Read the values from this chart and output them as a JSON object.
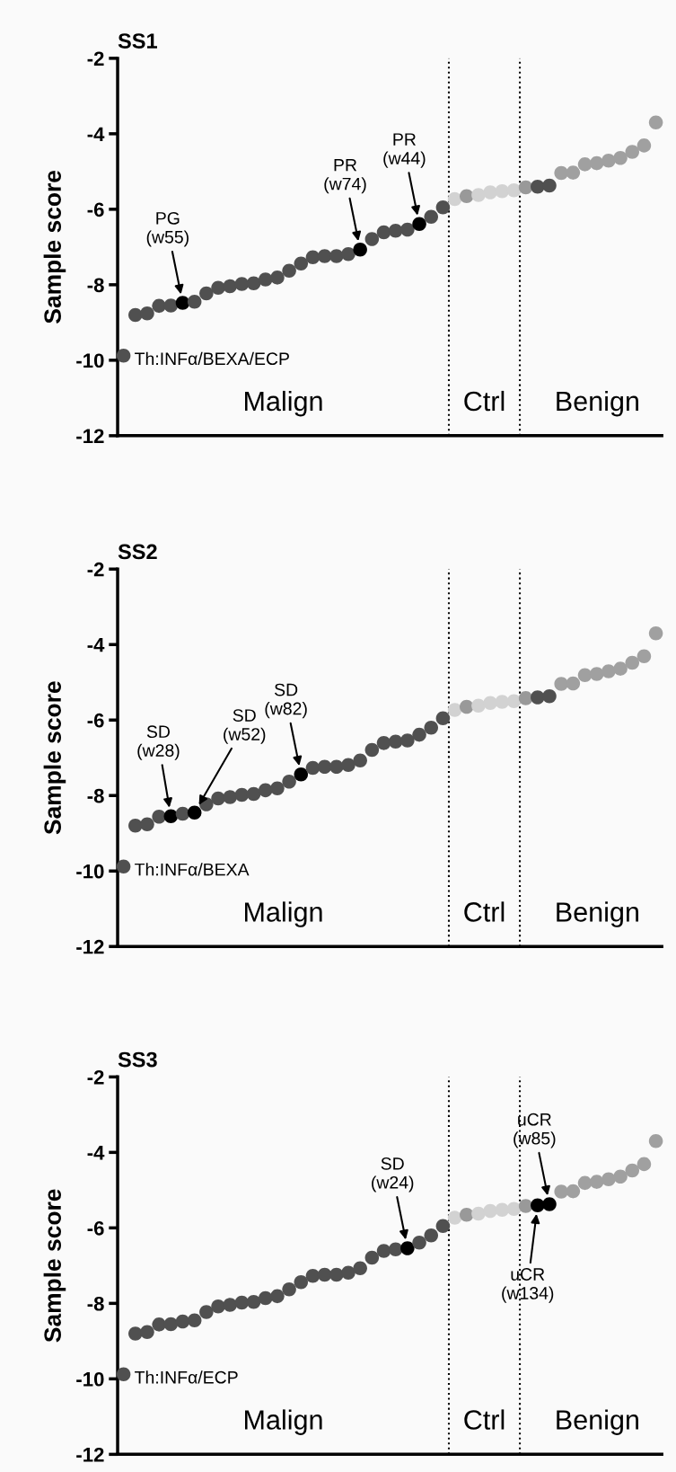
{
  "chart_data": [
    {
      "type": "scatter",
      "title": "SS1",
      "ylabel": "Sample score",
      "categories": [
        null,
        null,
        null,
        null,
        null,
        null,
        null,
        null,
        null,
        null,
        null,
        null,
        null,
        null,
        null,
        null,
        null,
        null,
        null,
        null,
        null,
        null,
        null,
        null,
        null,
        null,
        null,
        null,
        null,
        null,
        null,
        null,
        null,
        null,
        null,
        null,
        null,
        null,
        null,
        null,
        null,
        null,
        null,
        null,
        null,
        null
      ],
      "ylim": [
        -12,
        -2
      ],
      "yticks": [
        -2,
        -4,
        -6,
        -8,
        -10,
        -12
      ],
      "tick_labels": "y",
      "marker": "circle",
      "grid": false,
      "series": [
        {
          "values": [
            -9.88,
            -8.8,
            -8.76,
            -8.56,
            -8.55,
            -8.48,
            -8.45,
            -8.23,
            -8.08,
            -8.04,
            -7.98,
            -7.96,
            -7.86,
            -7.81,
            -7.63,
            -7.44,
            -7.27,
            -7.24,
            -7.24,
            -7.19,
            -7.07,
            -6.79,
            -6.61,
            -6.57,
            -6.54,
            -6.39,
            -6.2,
            -5.95,
            -5.73,
            -5.65,
            -5.62,
            -5.55,
            -5.52,
            -5.5,
            -5.42,
            -5.4,
            -5.37,
            -5.04,
            -5.03,
            -4.81,
            -4.78,
            -4.71,
            -4.64,
            -4.48,
            -4.31,
            -3.7
          ],
          "colors": [
            "#505050",
            "#505050",
            "#505050",
            "#505050",
            "#505050",
            "#000000",
            "#505050",
            "#505050",
            "#505050",
            "#505050",
            "#505050",
            "#505050",
            "#505050",
            "#505050",
            "#505050",
            "#505050",
            "#505050",
            "#505050",
            "#505050",
            "#505050",
            "#000000",
            "#505050",
            "#505050",
            "#505050",
            "#505050",
            "#000000",
            "#505050",
            "#505050",
            "#d2d2d2",
            "#999999",
            "#d2d2d2",
            "#d2d2d2",
            "#d2d2d2",
            "#d2d2d2",
            "#999999",
            "#505050",
            "#505050",
            "#a0a0a0",
            "#a0a0a0",
            "#a0a0a0",
            "#a0a0a0",
            "#a0a0a0",
            "#a0a0a0",
            "#a0a0a0",
            "#a0a0a0",
            "#a0a0a0"
          ]
        }
      ],
      "annotations": [
        "Th:INFα/BEXA/ECP",
        "Malign",
        "Ctrl",
        "Benign",
        "PG\n(w55)",
        "PR\n(w74)",
        "PR\n(w44)"
      ]
    },
    {
      "type": "scatter",
      "title": "SS2",
      "ylabel": "Sample score",
      "categories": [
        null,
        null,
        null,
        null,
        null,
        null,
        null,
        null,
        null,
        null,
        null,
        null,
        null,
        null,
        null,
        null,
        null,
        null,
        null,
        null,
        null,
        null,
        null,
        null,
        null,
        null,
        null,
        null,
        null,
        null,
        null,
        null,
        null,
        null,
        null,
        null,
        null,
        null,
        null,
        null,
        null,
        null,
        null,
        null,
        null,
        null
      ],
      "ylim": [
        -12,
        -2
      ],
      "yticks": [
        -2,
        -4,
        -6,
        -8,
        -10,
        -12
      ],
      "tick_labels": "y",
      "marker": "circle",
      "grid": false,
      "series": [
        {
          "values": [
            -9.88,
            -8.8,
            -8.76,
            -8.56,
            -8.55,
            -8.48,
            -8.45,
            -8.23,
            -8.08,
            -8.04,
            -7.98,
            -7.96,
            -7.86,
            -7.81,
            -7.63,
            -7.44,
            -7.27,
            -7.24,
            -7.24,
            -7.19,
            -7.07,
            -6.79,
            -6.61,
            -6.57,
            -6.54,
            -6.39,
            -6.2,
            -5.95,
            -5.73,
            -5.65,
            -5.62,
            -5.55,
            -5.52,
            -5.5,
            -5.42,
            -5.4,
            -5.37,
            -5.04,
            -5.03,
            -4.81,
            -4.78,
            -4.71,
            -4.64,
            -4.48,
            -4.31,
            -3.7
          ],
          "colors": [
            "#505050",
            "#505050",
            "#505050",
            "#505050",
            "#000000",
            "#505050",
            "#000000",
            "#505050",
            "#505050",
            "#505050",
            "#505050",
            "#505050",
            "#505050",
            "#505050",
            "#505050",
            "#000000",
            "#505050",
            "#505050",
            "#505050",
            "#505050",
            "#505050",
            "#505050",
            "#505050",
            "#505050",
            "#505050",
            "#505050",
            "#505050",
            "#505050",
            "#d2d2d2",
            "#999999",
            "#d2d2d2",
            "#d2d2d2",
            "#d2d2d2",
            "#d2d2d2",
            "#999999",
            "#505050",
            "#505050",
            "#a0a0a0",
            "#a0a0a0",
            "#a0a0a0",
            "#a0a0a0",
            "#a0a0a0",
            "#a0a0a0",
            "#a0a0a0",
            "#a0a0a0",
            "#a0a0a0"
          ]
        }
      ],
      "annotations": [
        "Th:INFα/BEXA",
        "Malign",
        "Ctrl",
        "Benign",
        "SD\n(w28)",
        "SD\n(w52)",
        "SD\n(w82)"
      ]
    },
    {
      "type": "scatter",
      "title": "SS3",
      "ylabel": "Sample score",
      "categories": [
        null,
        null,
        null,
        null,
        null,
        null,
        null,
        null,
        null,
        null,
        null,
        null,
        null,
        null,
        null,
        null,
        null,
        null,
        null,
        null,
        null,
        null,
        null,
        null,
        null,
        null,
        null,
        null,
        null,
        null,
        null,
        null,
        null,
        null,
        null,
        null,
        null,
        null,
        null,
        null,
        null,
        null,
        null,
        null,
        null,
        null
      ],
      "ylim": [
        -12,
        -2
      ],
      "yticks": [
        -2,
        -4,
        -6,
        -8,
        -10,
        -12
      ],
      "tick_labels": "y",
      "marker": "circle",
      "grid": false,
      "series": [
        {
          "values": [
            -9.88,
            -8.8,
            -8.76,
            -8.56,
            -8.55,
            -8.48,
            -8.45,
            -8.23,
            -8.08,
            -8.04,
            -7.98,
            -7.96,
            -7.86,
            -7.81,
            -7.63,
            -7.44,
            -7.27,
            -7.24,
            -7.24,
            -7.19,
            -7.07,
            -6.79,
            -6.61,
            -6.57,
            -6.54,
            -6.39,
            -6.2,
            -5.95,
            -5.73,
            -5.65,
            -5.62,
            -5.55,
            -5.52,
            -5.5,
            -5.42,
            -5.4,
            -5.37,
            -5.04,
            -5.03,
            -4.81,
            -4.78,
            -4.71,
            -4.64,
            -4.48,
            -4.31,
            -3.7
          ],
          "colors": [
            "#505050",
            "#505050",
            "#505050",
            "#505050",
            "#505050",
            "#505050",
            "#505050",
            "#505050",
            "#505050",
            "#505050",
            "#505050",
            "#505050",
            "#505050",
            "#505050",
            "#505050",
            "#505050",
            "#505050",
            "#505050",
            "#505050",
            "#505050",
            "#505050",
            "#505050",
            "#505050",
            "#505050",
            "#000000",
            "#505050",
            "#505050",
            "#505050",
            "#d2d2d2",
            "#999999",
            "#d2d2d2",
            "#d2d2d2",
            "#d2d2d2",
            "#d2d2d2",
            "#999999",
            "#000000",
            "#000000",
            "#a0a0a0",
            "#a0a0a0",
            "#a0a0a0",
            "#a0a0a0",
            "#a0a0a0",
            "#a0a0a0",
            "#a0a0a0",
            "#a0a0a0",
            "#a0a0a0"
          ]
        }
      ],
      "annotations": [
        "Th:INFα/ECP",
        "Malign",
        "Ctrl",
        "Benign",
        "SD\n(w24)",
        "uCR\n(w134)",
        "uCR\n(w85)"
      ]
    }
  ]
}
